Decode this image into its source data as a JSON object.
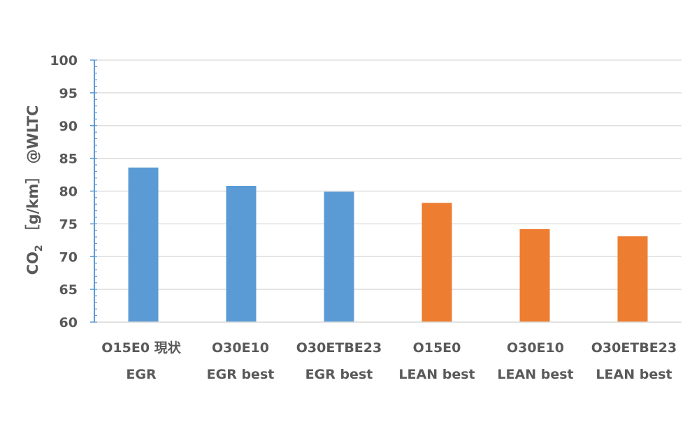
{
  "chart_data": {
    "type": "bar",
    "title": "",
    "xlabel": "",
    "ylabel_main": "CO",
    "ylabel_subscript": "2",
    "ylabel_rest": "［g/km］ @WLTC",
    "ylim": [
      60,
      100
    ],
    "yticks": [
      60,
      65,
      70,
      75,
      80,
      85,
      90,
      95,
      100
    ],
    "gridlines": true,
    "legend": "none",
    "categories": [
      [
        "O15E0 現状",
        "EGR"
      ],
      [
        "O30E10",
        "EGR best"
      ],
      [
        "O30ETBE23",
        "EGR best"
      ],
      [
        "O15E0",
        "LEAN best"
      ],
      [
        "O30E10",
        "LEAN best"
      ],
      [
        "O30ETBE23",
        "LEAN best"
      ]
    ],
    "values": [
      83.6,
      80.8,
      79.9,
      78.2,
      74.2,
      73.1
    ],
    "bar_colors": [
      "#5b9bd5",
      "#5b9bd5",
      "#5b9bd5",
      "#ed7d31",
      "#ed7d31",
      "#ed7d31"
    ],
    "axis_color": "#5b9bd5",
    "grid_color": "#d9d9d9",
    "text_color": "#595959"
  }
}
